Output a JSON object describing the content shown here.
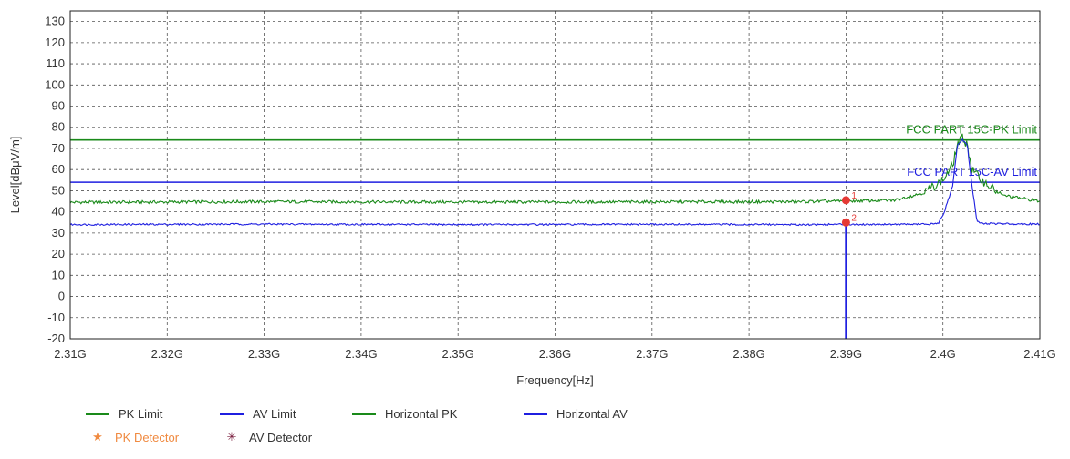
{
  "chart_data": {
    "type": "line",
    "xlabel": "Frequency[Hz]",
    "ylabel": "Level[dBμV/m]",
    "x_range": [
      2.31,
      2.41
    ],
    "x_tick_values": [
      2.31,
      2.32,
      2.33,
      2.34,
      2.35,
      2.36,
      2.37,
      2.38,
      2.39,
      2.4,
      2.41
    ],
    "x_tick_labels": [
      "2.31G",
      "2.32G",
      "2.33G",
      "2.34G",
      "2.35G",
      "2.36G",
      "2.37G",
      "2.38G",
      "2.39G",
      "2.4G",
      "2.41G"
    ],
    "ylim": [
      -20,
      135
    ],
    "y_tick_values": [
      -20,
      -10,
      0,
      10,
      20,
      30,
      40,
      50,
      60,
      70,
      80,
      90,
      100,
      110,
      120,
      130
    ],
    "y_tick_labels": [
      "-20",
      "-10",
      "0",
      "10",
      "20",
      "30",
      "40",
      "50",
      "60",
      "70",
      "80",
      "90",
      "100",
      "110",
      "120",
      "130"
    ],
    "grid": true,
    "legend_placement": "bottom",
    "limits": [
      {
        "name": "PK Limit",
        "label": "FCC PART 15C-PK Limit",
        "y": 74,
        "color": "#1a8a1a"
      },
      {
        "name": "AV Limit",
        "label": "FCC PART 15C-AV Limit",
        "y": 54,
        "color": "#1f1fe0"
      }
    ],
    "series": [
      {
        "name": "Horizontal PK",
        "color": "#1a8a1a",
        "x": [
          2.31,
          2.33,
          2.35,
          2.37,
          2.385,
          2.395,
          2.398,
          2.4,
          2.401,
          2.4015,
          2.402,
          2.4025,
          2.403,
          2.404,
          2.406,
          2.41
        ],
        "y": [
          44.5,
          44.8,
          44.6,
          44.7,
          44.8,
          45.5,
          49,
          55,
          62,
          72,
          75,
          72,
          60,
          55,
          48,
          45
        ]
      },
      {
        "name": "Horizontal AV",
        "color": "#1f1fe0",
        "x": [
          2.31,
          2.33,
          2.35,
          2.37,
          2.385,
          2.399,
          2.3995,
          2.4,
          2.401,
          2.4015,
          2.402,
          2.4025,
          2.403,
          2.4035,
          2.404,
          2.41
        ],
        "y": [
          34,
          34.2,
          34,
          34.1,
          34,
          34.2,
          34.5,
          38,
          52,
          72,
          74,
          72,
          52,
          36,
          34.5,
          34.2
        ]
      }
    ],
    "markers": [
      {
        "id": "1",
        "x": 2.39,
        "y": 45.5,
        "detector": "PK"
      },
      {
        "id": "2",
        "x": 2.39,
        "y": 35,
        "detector": "AV"
      }
    ],
    "band_edge_line": {
      "x": 2.39,
      "color": "#1f1fe0"
    }
  },
  "legend": [
    {
      "label": "PK Limit",
      "kind": "line",
      "color": "#1a8a1a"
    },
    {
      "label": "AV Limit",
      "kind": "line",
      "color": "#1f1fe0"
    },
    {
      "label": "Horizontal PK",
      "kind": "line",
      "color": "#1a8a1a"
    },
    {
      "label": "Horizontal AV",
      "kind": "line",
      "color": "#1f1fe0"
    },
    {
      "label": "PK Detector",
      "kind": "star",
      "color": "#f08a40",
      "icon": "star-icon"
    },
    {
      "label": "AV Detector",
      "kind": "star",
      "color": "#7a1f3f",
      "icon": "asterisk-icon"
    }
  ]
}
